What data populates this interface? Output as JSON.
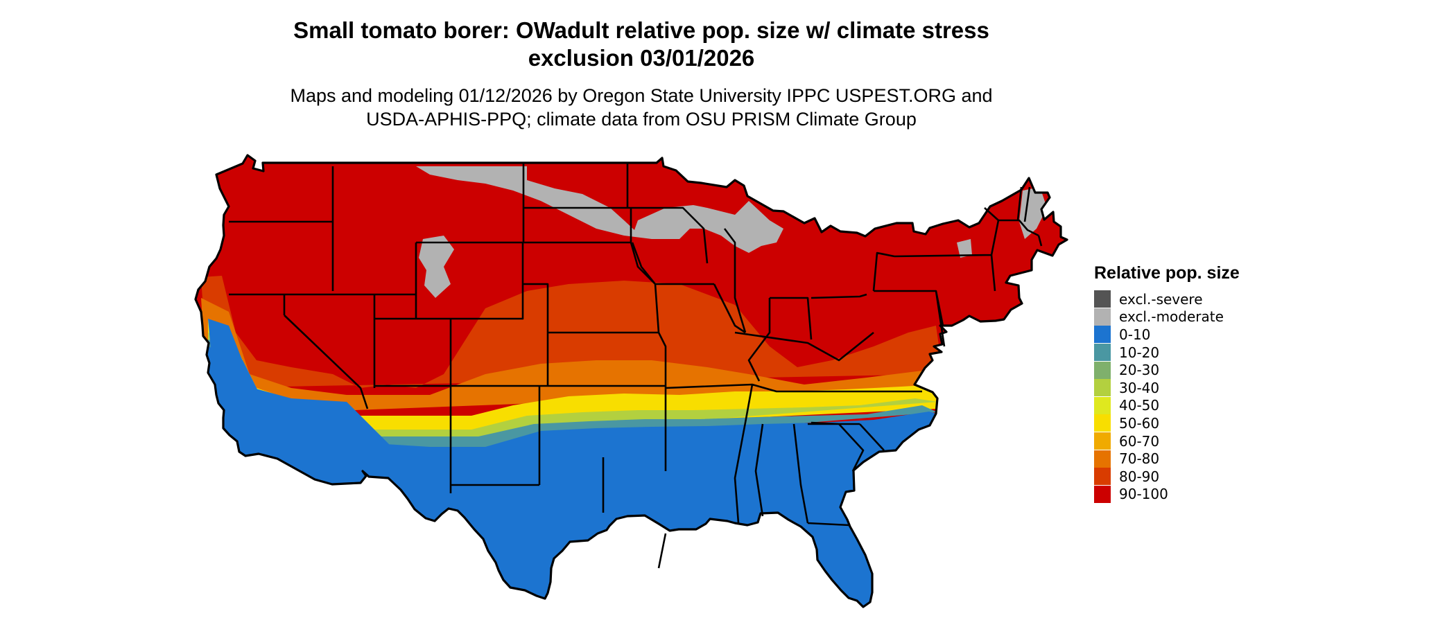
{
  "title_line1": "Small tomato borer: OWadult relative pop. size w/ climate stress",
  "title_line2": "exclusion 03/01/2026",
  "subtitle_line1": "Maps and modeling 01/12/2026 by Oregon State University IPPC USPEST.ORG and",
  "subtitle_line2": "USDA-APHIS-PPQ; climate data from OSU PRISM Climate Group",
  "legend": {
    "title": "Relative pop. size",
    "items": [
      {
        "label": "excl.-severe",
        "color": "#545454"
      },
      {
        "label": "excl.-moderate",
        "color": "#b2b2b2"
      },
      {
        "label": "0-10",
        "color": "#1c74d0"
      },
      {
        "label": "10-20",
        "color": "#4a97a2"
      },
      {
        "label": "20-30",
        "color": "#7fb06c"
      },
      {
        "label": "30-40",
        "color": "#b3d03f"
      },
      {
        "label": "40-50",
        "color": "#dfe81f"
      },
      {
        "label": "50-60",
        "color": "#f8de00"
      },
      {
        "label": "60-70",
        "color": "#f0aa00"
      },
      {
        "label": "70-80",
        "color": "#e67300"
      },
      {
        "label": "80-90",
        "color": "#d93c00"
      },
      {
        "label": "90-100",
        "color": "#cc0000"
      }
    ]
  },
  "map": {
    "region": "Contiguous United States",
    "color_background_land": "#cc0000",
    "color_border": "#000000"
  }
}
